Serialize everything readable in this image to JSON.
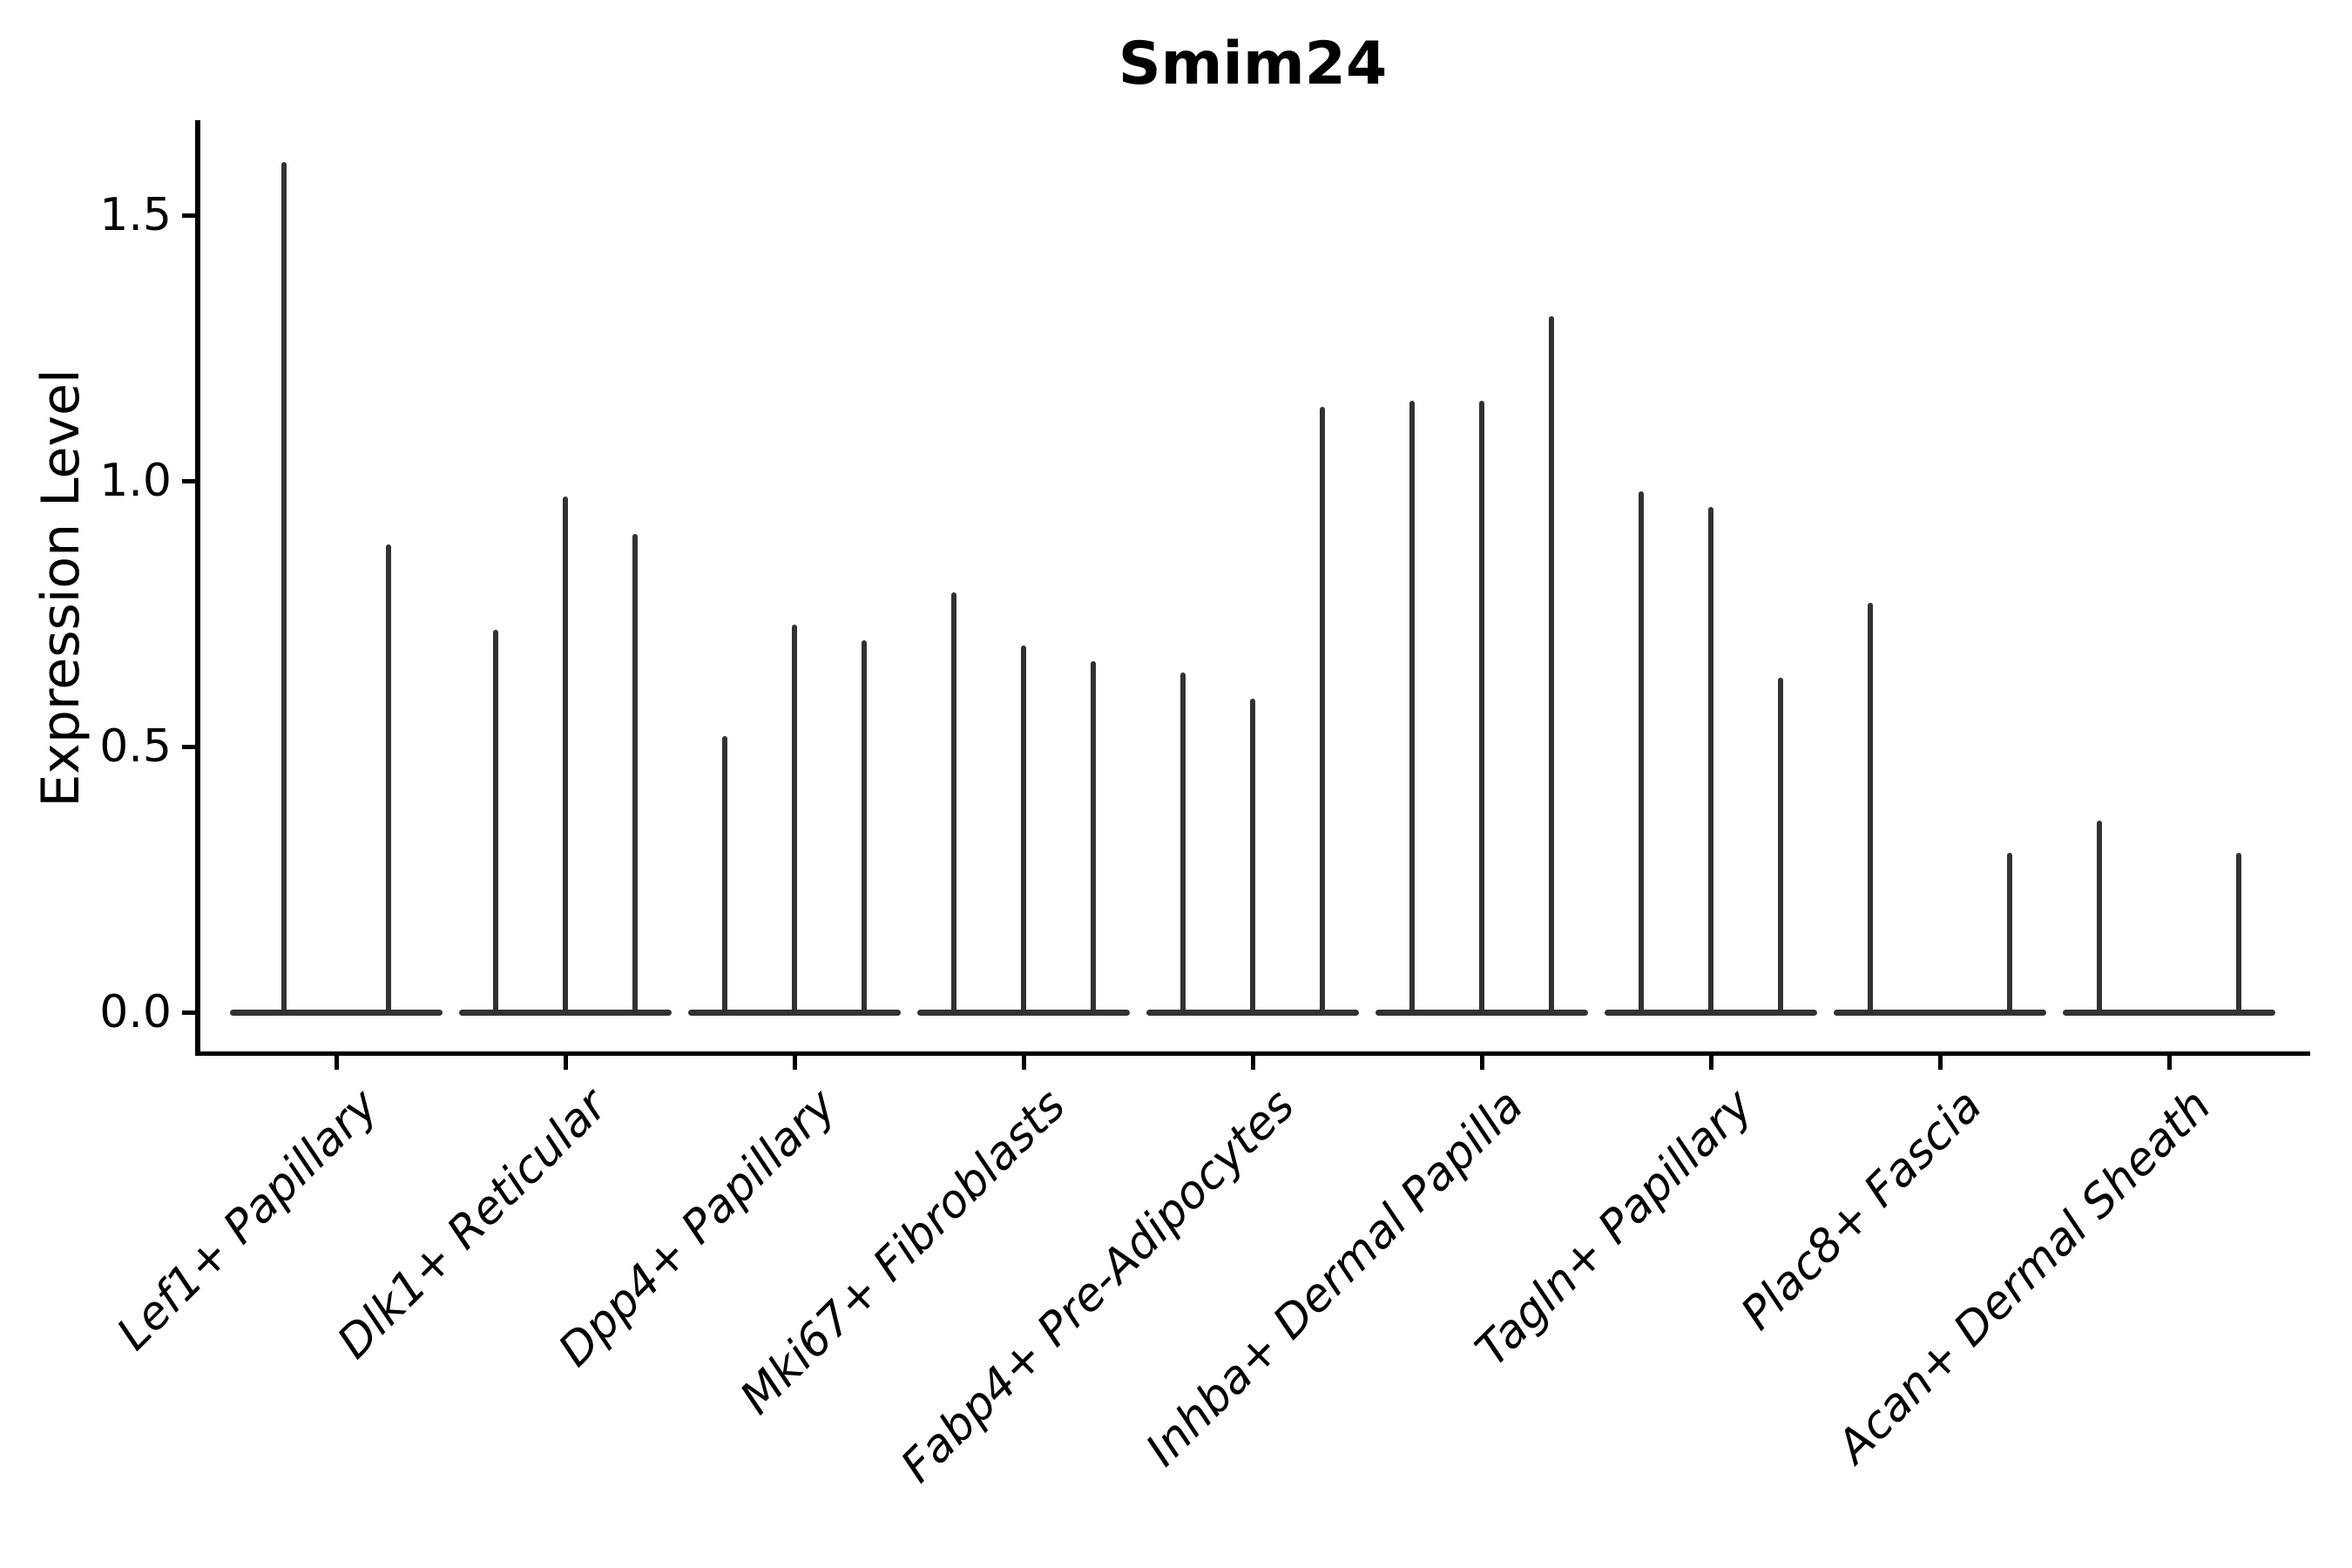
{
  "title": "Smim24",
  "chart_data": {
    "type": "violin",
    "title": "Smim24",
    "xlabel": "",
    "ylabel": "Expression Level",
    "ytick_values": [
      0.0,
      0.5,
      1.0,
      1.5
    ],
    "ytick_labels": [
      "0.0",
      "0.5",
      "1.0",
      "1.5"
    ],
    "ylim": [
      -0.08,
      1.68
    ],
    "grid": false,
    "legend_position": "none",
    "violins_per_category": 3,
    "categories": [
      "Lef1+ Papillary",
      "Dlk1+ Reticular",
      "Dpp4+ Papillary",
      "Mki67+ Fibroblasts",
      "Fabp4+ Pre-Adipocytes",
      "Inhba+ Dermal Papilla",
      "Tagln+ Papillary",
      "Plac8+ Fascia",
      "Acan+ Dermal Sheath"
    ],
    "groups": [
      {
        "category": "Lef1+ Papillary",
        "spike_max_values": [
          1.6,
          0.0,
          0.88
        ]
      },
      {
        "category": "Dlk1+ Reticular",
        "spike_max_values": [
          0.72,
          0.97,
          0.9
        ]
      },
      {
        "category": "Dpp4+ Papillary",
        "spike_max_values": [
          0.52,
          0.73,
          0.7
        ]
      },
      {
        "category": "Mki67+ Fibroblasts",
        "spike_max_values": [
          0.79,
          0.69,
          0.66
        ]
      },
      {
        "category": "Fabp4+ Pre-Adipocytes",
        "spike_max_values": [
          0.64,
          0.59,
          1.14
        ]
      },
      {
        "category": "Inhba+ Dermal Papilla",
        "spike_max_values": [
          1.15,
          1.15,
          1.31
        ]
      },
      {
        "category": "Tagln+ Papillary",
        "spike_max_values": [
          0.98,
          0.95,
          0.63
        ]
      },
      {
        "category": "Plac8+ Fascia",
        "spike_max_values": [
          0.77,
          0.0,
          0.3
        ]
      },
      {
        "category": "Acan+ Dermal Sheath",
        "spike_max_values": [
          0.36,
          0.0,
          0.3
        ]
      }
    ]
  },
  "colors": {
    "violin": "#323232",
    "axis": "#000000",
    "text": "#000000",
    "background": "#ffffff"
  }
}
